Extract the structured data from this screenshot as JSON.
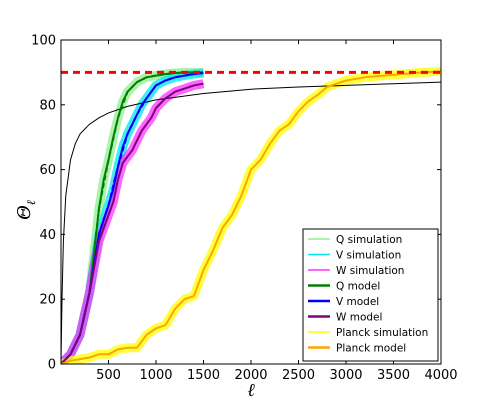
{
  "chart_data": {
    "type": "line",
    "xlabel": "ℓ",
    "ylabel": "Θ",
    "ylabel_subscript": "ℓ",
    "xlim": [
      0,
      4000
    ],
    "ylim": [
      0,
      100
    ],
    "xticks": [
      500,
      1000,
      1500,
      2000,
      2500,
      3000,
      3500,
      4000
    ],
    "yticks": [
      0,
      20,
      40,
      60,
      80,
      100
    ],
    "grid": false,
    "legend_position": "lower-right",
    "reference_line": {
      "y": 90,
      "color": "#ff0000",
      "style": "dashed"
    },
    "series": [
      {
        "name": "Q simulation",
        "color": "#90ee90",
        "style": "solid-band",
        "x": [
          0,
          100,
          200,
          300,
          350,
          400,
          450,
          500,
          550,
          600,
          650,
          700,
          800,
          900,
          1000,
          1100,
          1200,
          1300,
          1400,
          1500
        ],
        "y": [
          0,
          3,
          9,
          22,
          35,
          48,
          57,
          63,
          70,
          76,
          81,
          84,
          87,
          88.5,
          89,
          89.5,
          89.8,
          90,
          90,
          90
        ]
      },
      {
        "name": "V simulation",
        "color": "#00e5ee",
        "style": "solid-band",
        "x": [
          0,
          100,
          200,
          300,
          400,
          500,
          550,
          600,
          650,
          700,
          750,
          800,
          850,
          900,
          1000,
          1100,
          1200,
          1300,
          1400,
          1500
        ],
        "y": [
          0,
          3,
          9,
          22,
          40,
          49,
          54,
          61,
          67,
          71,
          74,
          77,
          80,
          82,
          86,
          87.5,
          88.5,
          89,
          89.5,
          89.8
        ]
      },
      {
        "name": "W simulation",
        "color": "#ff33ff",
        "style": "solid-band",
        "x": [
          0,
          100,
          200,
          300,
          400,
          500,
          550,
          600,
          650,
          700,
          750,
          800,
          850,
          900,
          950,
          1000,
          1100,
          1200,
          1300,
          1400,
          1500
        ],
        "y": [
          0,
          3,
          9,
          22,
          38,
          46,
          50,
          57,
          62,
          64,
          66,
          69,
          72,
          74,
          76,
          79,
          82,
          84,
          85,
          86,
          86.5
        ]
      },
      {
        "name": "Q model",
        "color": "#008000",
        "style": "solid",
        "x": [
          0,
          100,
          200,
          300,
          350,
          400,
          450,
          500,
          550,
          600,
          650,
          700,
          800,
          900,
          1000,
          1100,
          1200,
          1300,
          1400,
          1500
        ],
        "y": [
          0,
          3,
          9,
          22,
          35,
          48,
          57,
          63,
          70,
          76,
          81,
          84,
          87,
          88.5,
          89,
          89.5,
          89.8,
          90,
          90,
          90
        ]
      },
      {
        "name": "V model",
        "color": "#0000ff",
        "style": "solid",
        "x": [
          0,
          100,
          200,
          300,
          400,
          500,
          550,
          600,
          650,
          700,
          750,
          800,
          850,
          900,
          1000,
          1100,
          1200,
          1300,
          1400,
          1500
        ],
        "y": [
          0,
          3,
          9,
          22,
          40,
          49,
          54,
          61,
          67,
          71,
          74,
          77,
          80,
          82,
          86,
          87.5,
          88.5,
          89,
          89.5,
          89.8
        ]
      },
      {
        "name": "W model",
        "color": "#800080",
        "style": "solid",
        "x": [
          0,
          100,
          200,
          300,
          400,
          500,
          550,
          600,
          650,
          700,
          750,
          800,
          850,
          900,
          950,
          1000,
          1100,
          1200,
          1300,
          1400,
          1500
        ],
        "y": [
          0,
          3,
          9,
          22,
          38,
          46,
          50,
          57,
          62,
          64,
          66,
          69,
          72,
          74,
          76,
          79,
          82,
          84,
          85,
          86,
          86.5
        ]
      },
      {
        "name": "Planck simulation",
        "color": "#ffff00",
        "style": "solid-band",
        "x": [
          0,
          100,
          200,
          300,
          400,
          500,
          600,
          700,
          800,
          900,
          1000,
          1100,
          1200,
          1300,
          1400,
          1500,
          1600,
          1700,
          1800,
          1900,
          2000,
          2100,
          2200,
          2300,
          2400,
          2500,
          2600,
          2700,
          2800,
          2900,
          3000,
          3200,
          3400,
          3600,
          3800,
          4000
        ],
        "y": [
          0,
          1,
          1.5,
          2,
          3,
          3,
          4.5,
          5,
          5,
          9,
          11,
          12,
          17,
          20,
          21,
          29,
          35,
          42,
          46,
          52,
          60,
          63,
          68,
          72,
          74,
          78,
          81,
          83,
          85.5,
          86.5,
          87.5,
          88.5,
          89,
          89.5,
          90,
          90.3
        ]
      },
      {
        "name": "Planck model",
        "color": "#ffa500",
        "style": "solid",
        "x": [
          0,
          100,
          200,
          300,
          400,
          500,
          600,
          700,
          800,
          900,
          1000,
          1100,
          1200,
          1300,
          1400,
          1500,
          1600,
          1700,
          1800,
          1900,
          2000,
          2100,
          2200,
          2300,
          2400,
          2500,
          2600,
          2700,
          2800,
          2900,
          3000,
          3200,
          3400,
          3600,
          3800,
          4000
        ],
        "y": [
          0,
          1,
          1.5,
          2,
          3,
          3,
          4.5,
          5,
          5,
          9,
          11,
          12,
          17,
          20,
          21,
          29,
          35,
          42,
          46,
          52,
          60,
          63,
          68,
          72,
          74,
          78,
          81,
          83,
          85.5,
          86.5,
          87.5,
          88.5,
          89,
          89.5,
          90,
          90.3
        ]
      }
    ],
    "extra_curves": [
      {
        "color": "#000000",
        "style": "solid",
        "x": [
          0,
          10,
          25,
          50,
          100,
          150,
          200,
          300,
          400,
          500,
          700,
          1000,
          1500,
          2000,
          2500,
          3000,
          3500,
          4000
        ],
        "y": [
          0,
          20,
          38,
          52,
          63,
          68,
          71,
          74,
          76,
          77.5,
          79.5,
          81.5,
          83.5,
          84.8,
          85.5,
          86,
          86.5,
          87
        ]
      },
      {
        "color": "#0000ff",
        "style": "dashed",
        "x": [
          0,
          100,
          200,
          300,
          400,
          500,
          600,
          700,
          800,
          900,
          1000,
          1100,
          1200,
          1300,
          1400,
          1500
        ],
        "y": [
          0,
          3,
          9,
          22,
          40,
          49,
          61,
          71,
          77,
          82,
          86,
          87.5,
          88.5,
          89,
          89.5,
          89.8
        ]
      },
      {
        "color": "#008000",
        "style": "dashed",
        "x": [
          0,
          100,
          200,
          300,
          400,
          500,
          600,
          700,
          800,
          900,
          1000,
          1200,
          1500
        ],
        "y": [
          0,
          3,
          9,
          22,
          48,
          63,
          76,
          84,
          87,
          88.5,
          89,
          89.8,
          90
        ]
      }
    ]
  }
}
